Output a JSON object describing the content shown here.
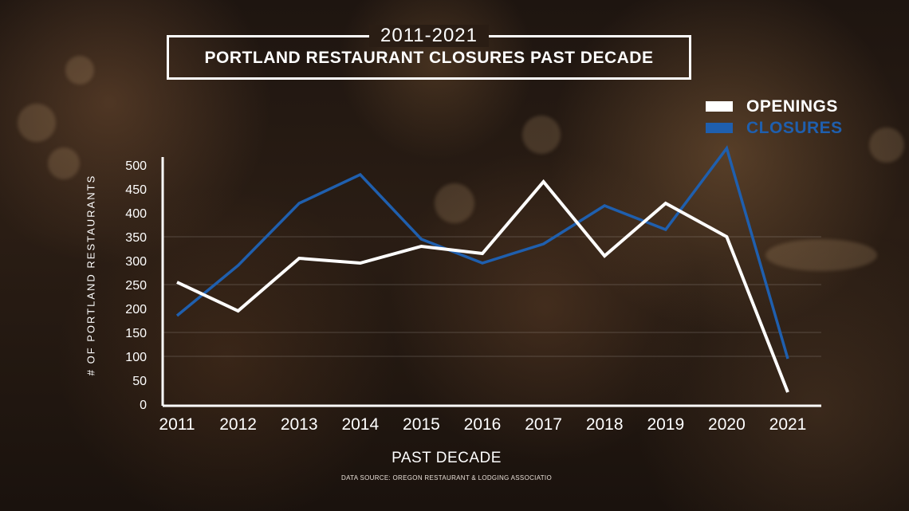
{
  "header": {
    "years": "2011-2021",
    "title": "PORTLAND RESTAURANT CLOSURES PAST DECADE"
  },
  "colors": {
    "openings": "#ffffff",
    "closures": "#1f5fae"
  },
  "chart_data": {
    "type": "line",
    "title": "PORTLAND RESTAURANT CLOSURES PAST DECADE",
    "subtitle": "2011-2021",
    "xlabel": "PAST DECADE",
    "ylabel": "# OF PORTLAND RESTAURANTS",
    "x": [
      "2011",
      "2012",
      "2013",
      "2014",
      "2015",
      "2016",
      "2017",
      "2018",
      "2019",
      "2020",
      "2021"
    ],
    "ylim": [
      0,
      500
    ],
    "yticks": [
      "500",
      "450",
      "400",
      "350",
      "300",
      "250",
      "200",
      "150",
      "100",
      "50",
      "0"
    ],
    "grid": true,
    "legend_position": "top-right",
    "series": [
      {
        "name": "OPENINGS",
        "color": "#ffffff",
        "values": [
          255,
          195,
          305,
          295,
          330,
          315,
          465,
          310,
          420,
          350,
          25
        ]
      },
      {
        "name": "CLOSURES",
        "color": "#1f5fae",
        "values": [
          185,
          290,
          420,
          480,
          345,
          295,
          335,
          415,
          365,
          535,
          95
        ]
      }
    ]
  },
  "source": "DATA SOURCE: OREGON RESTAURANT & LODGING ASSOCIATIO"
}
